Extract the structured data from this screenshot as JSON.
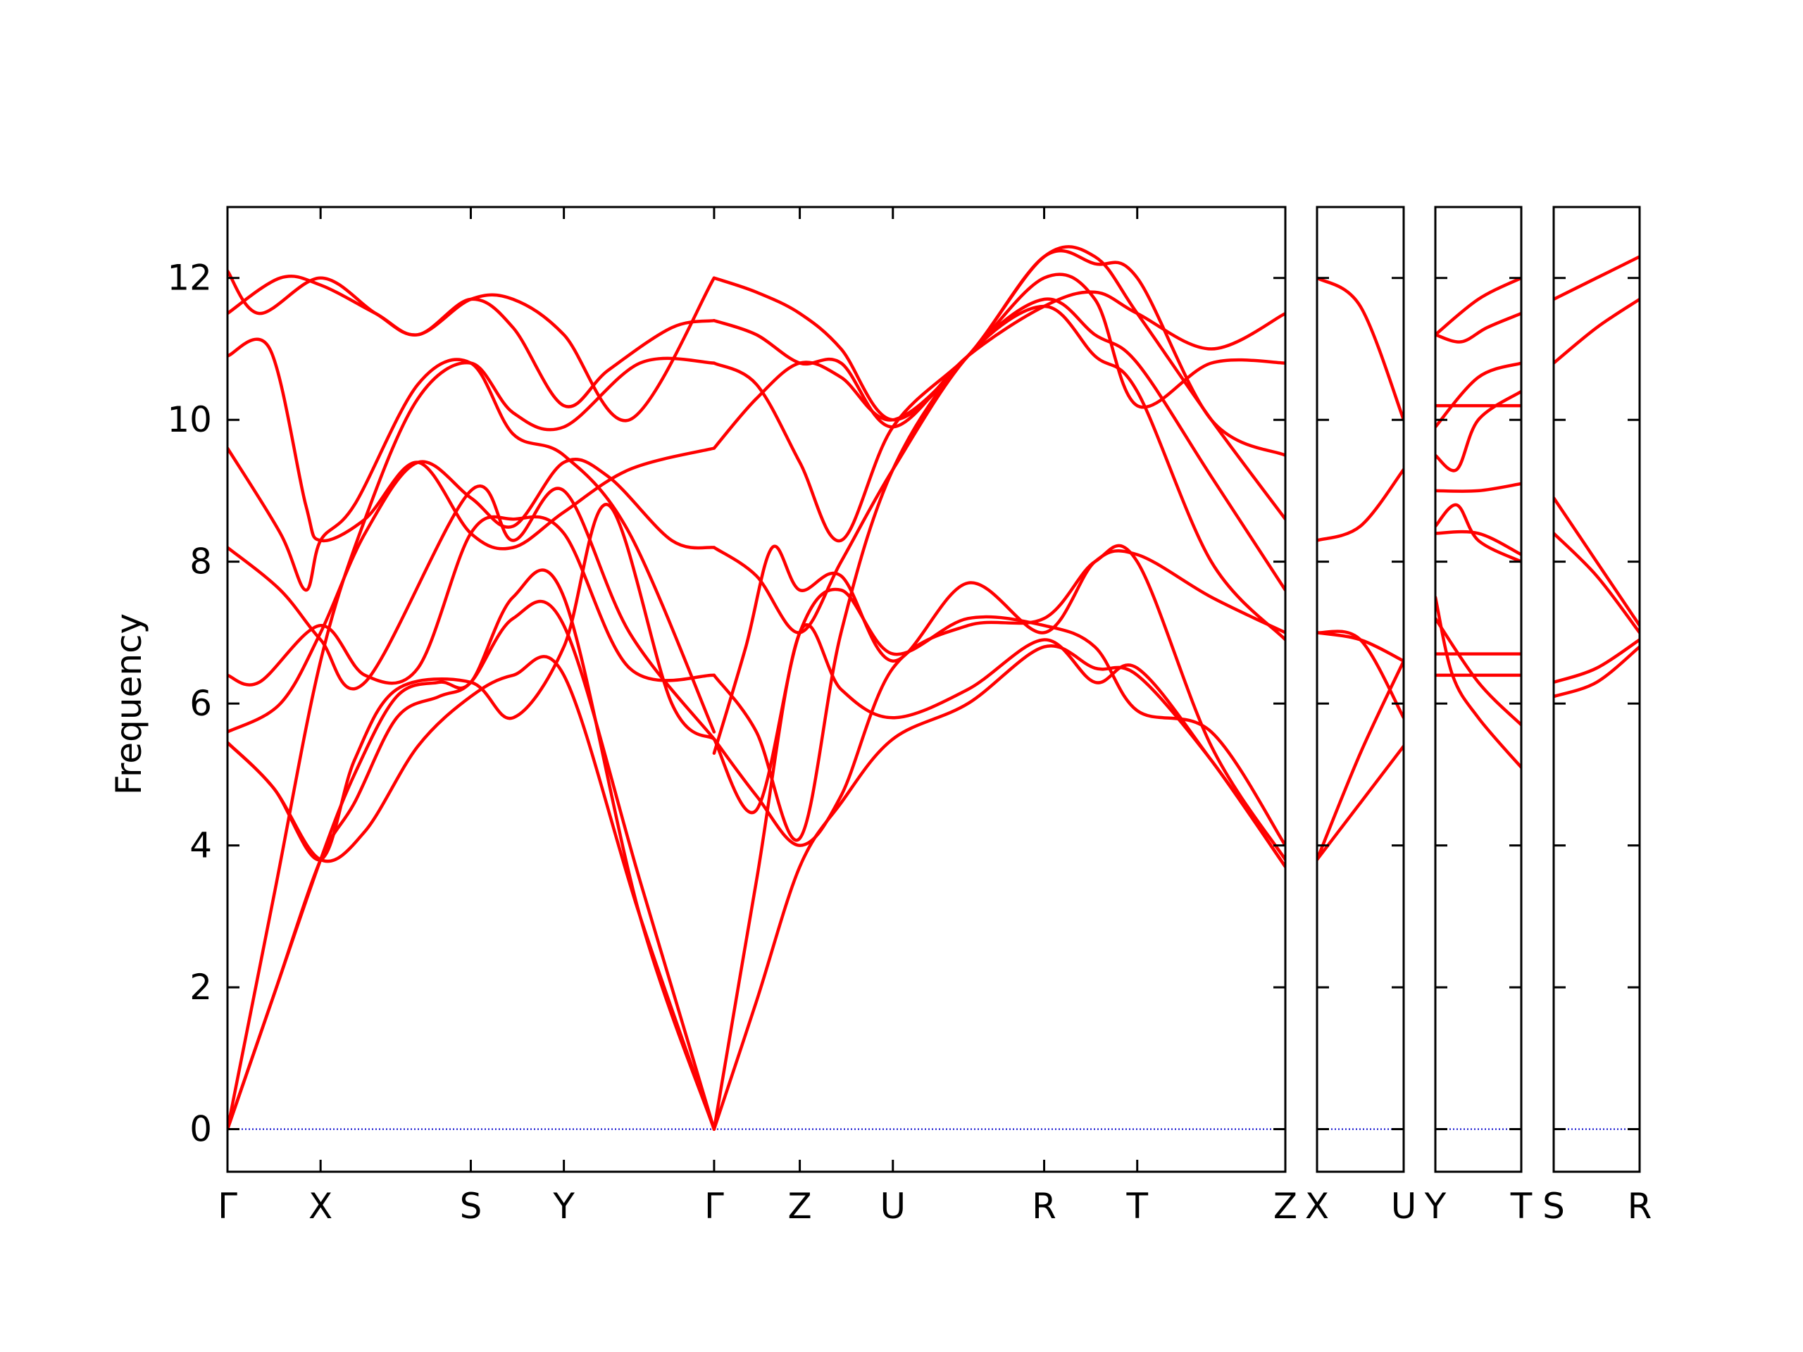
{
  "chart_data": {
    "type": "line",
    "title": "",
    "xlabel": "",
    "ylabel": "Frequency",
    "ylim": [
      -0.6,
      13
    ],
    "yticks": [
      0,
      2,
      4,
      6,
      8,
      10,
      12
    ],
    "line_color": "#ff0000",
    "zero_line_color": "#0000cc",
    "grid": false,
    "legend": "none",
    "panels": [
      {
        "xlim": [
          0,
          1
        ],
        "ticks": [
          {
            "x": 0.0,
            "label": "Γ"
          },
          {
            "x": 0.088,
            "label": "X"
          },
          {
            "x": 0.23,
            "label": "S"
          },
          {
            "x": 0.318,
            "label": "Y"
          },
          {
            "x": 0.46,
            "label": "Γ"
          },
          {
            "x": 0.541,
            "label": "Z"
          },
          {
            "x": 0.629,
            "label": "U"
          },
          {
            "x": 0.772,
            "label": "R"
          },
          {
            "x": 0.86,
            "label": "T"
          },
          {
            "x": 1.0,
            "label": "Z"
          }
        ],
        "series": [
          {
            "x": [
              0,
              0.044,
              0.088,
              0.13,
              0.18,
              0.23,
              0.27,
              0.318,
              0.39,
              0.46
            ],
            "y": [
              0,
              3.3,
              6.6,
              8.6,
              10.3,
              10.8,
              10.1,
              9.9,
              10.8,
              10.8
            ]
          },
          {
            "x": [
              0,
              0.044,
              0.088,
              0.12,
              0.16,
              0.2,
              0.23,
              0.27,
              0.318,
              0.39,
              0.46
            ],
            "y": [
              0,
              1.9,
              3.8,
              4.6,
              5.8,
              6.1,
              6.3,
              7.2,
              7.1,
              3.5,
              0
            ]
          },
          {
            "x": [
              0,
              0.044,
              0.088,
              0.12,
              0.16,
              0.2,
              0.23,
              0.27,
              0.318,
              0.39,
              0.46
            ],
            "y": [
              0,
              1.9,
              3.8,
              5,
              6.1,
              6.3,
              6.3,
              7.5,
              7.5,
              3,
              0
            ]
          },
          {
            "x": [
              0,
              0.044,
              0.088,
              0.13,
              0.18,
              0.23,
              0.27,
              0.318,
              0.39,
              0.46
            ],
            "y": [
              5.45,
              4.8,
              3.8,
              4.2,
              5.4,
              6.1,
              6.4,
              6.4,
              3,
              0
            ]
          },
          {
            "x": [
              0,
              0.044,
              0.088,
              0.12,
              0.16,
              0.23,
              0.27,
              0.318,
              0.36,
              0.42,
              0.46
            ],
            "y": [
              5.45,
              4.8,
              3.8,
              5.2,
              6.2,
              6.3,
              5.8,
              6.8,
              8.8,
              6,
              5.5
            ]
          },
          {
            "x": [
              0,
              0.05,
              0.088,
              0.13,
              0.18,
              0.23,
              0.27,
              0.318,
              0.36,
              0.42,
              0.46
            ],
            "y": [
              5.6,
              6,
              7,
              8.4,
              9.4,
              8.9,
              8.5,
              9.4,
              9.2,
              8.3,
              8.2
            ]
          },
          {
            "x": [
              0,
              0.03,
              0.088,
              0.13,
              0.18,
              0.23,
              0.27,
              0.318,
              0.38,
              0.46
            ],
            "y": [
              6.4,
              6.3,
              7.1,
              6.4,
              6.5,
              8.4,
              8.6,
              8.4,
              6.5,
              6.4
            ]
          },
          {
            "x": [
              0,
              0.05,
              0.088,
              0.13,
              0.23,
              0.27,
              0.318,
              0.38,
              0.46
            ],
            "y": [
              8.2,
              7.6,
              6.9,
              6.3,
              9,
              8.3,
              9,
              7,
              5.5
            ]
          },
          {
            "x": [
              0,
              0.05,
              0.074,
              0.088,
              0.12,
              0.18,
              0.23,
              0.27,
              0.318,
              0.38,
              0.46
            ],
            "y": [
              9.6,
              8.4,
              7.6,
              8.3,
              8.8,
              10.5,
              10.8,
              9.8,
              9.5,
              8.4,
              5.6
            ]
          },
          {
            "x": [
              0,
              0.04,
              0.074,
              0.088,
              0.13,
              0.18,
              0.23,
              0.27,
              0.318,
              0.38,
              0.46
            ],
            "y": [
              10.9,
              11,
              8.8,
              8.3,
              8.6,
              9.4,
              8.4,
              8.2,
              8.7,
              9.3,
              9.6
            ]
          },
          {
            "x": [
              0,
              0.03,
              0.088,
              0.14,
              0.18,
              0.23,
              0.27,
              0.318,
              0.36,
              0.42,
              0.46
            ],
            "y": [
              12.1,
              11.5,
              12,
              11.5,
              11.2,
              11.7,
              11.3,
              10.2,
              10.7,
              11.3,
              11.4
            ]
          },
          {
            "x": [
              0,
              0.05,
              0.088,
              0.14,
              0.18,
              0.23,
              0.27,
              0.318,
              0.38,
              0.46
            ],
            "y": [
              11.5,
              12,
              11.9,
              11.5,
              11.2,
              11.7,
              11.7,
              11.2,
              10,
              12
            ]
          },
          {
            "x": [
              0.46,
              0.5,
              0.541,
              0.58,
              0.629,
              0.7,
              0.772,
              0.82,
              0.86,
              0.93,
              1
            ],
            "y": [
              0,
              1.8,
              3.7,
              4.6,
              5.5,
              6,
              6.8,
              6.5,
              6.4,
              5.2,
              3.7
            ]
          },
          {
            "x": [
              0.46,
              0.5,
              0.541,
              0.58,
              0.629,
              0.7,
              0.772,
              0.82,
              0.86,
              0.93,
              1
            ],
            "y": [
              0,
              3.5,
              7,
              6.2,
              5.8,
              6.2,
              6.9,
              6.3,
              6.5,
              5.2,
              3.7
            ]
          },
          {
            "x": [
              0.46,
              0.5,
              0.541,
              0.58,
              0.629,
              0.7,
              0.772,
              0.82,
              0.86,
              0.93,
              1
            ],
            "y": [
              5.5,
              4.7,
              4,
              4.7,
              6.5,
              7.1,
              7.2,
              8,
              8,
              5.4,
              3.8
            ]
          },
          {
            "x": [
              0.46,
              0.5,
              0.541,
              0.58,
              0.629,
              0.7,
              0.772,
              0.82,
              0.86,
              0.93,
              1
            ],
            "y": [
              5.5,
              4.5,
              7,
              7.6,
              6.7,
              7.2,
              7.1,
              6.8,
              5.9,
              5.6,
              4
            ]
          },
          {
            "x": [
              0.46,
              0.49,
              0.515,
              0.541,
              0.58,
              0.629,
              0.7,
              0.772,
              0.82,
              0.86,
              0.93,
              1
            ],
            "y": [
              5.3,
              6.8,
              8.2,
              7.6,
              7.8,
              6.6,
              7.7,
              7,
              8,
              8.1,
              7.5,
              7
            ]
          },
          {
            "x": [
              0.46,
              0.5,
              0.541,
              0.58,
              0.629,
              0.7,
              0.772,
              0.82,
              0.86,
              0.93,
              1
            ],
            "y": [
              6.4,
              5.6,
              4.1,
              7,
              9.3,
              10.9,
              11.6,
              10.9,
              10.4,
              8,
              6.9
            ]
          },
          {
            "x": [
              0.46,
              0.5,
              0.541,
              0.58,
              0.629,
              0.7,
              0.772,
              0.82,
              0.86,
              0.93,
              1
            ],
            "y": [
              8.2,
              7.8,
              7,
              8,
              9.3,
              10.9,
              11.7,
              11.2,
              10.8,
              9.2,
              7.6
            ]
          },
          {
            "x": [
              0.46,
              0.5,
              0.541,
              0.58,
              0.629,
              0.7,
              0.772,
              0.82,
              0.86,
              0.93,
              1
            ],
            "y": [
              9.6,
              10.3,
              10.8,
              10.6,
              10,
              10.9,
              12.3,
              12.3,
              11.5,
              10,
              8.6
            ]
          },
          {
            "x": [
              0.46,
              0.5,
              0.541,
              0.58,
              0.629,
              0.7,
              0.772,
              0.82,
              0.86,
              0.93,
              1
            ],
            "y": [
              10.8,
              10.5,
              9.4,
              8.3,
              9.9,
              10.9,
              12,
              11.7,
              10.2,
              10.8,
              10.8
            ]
          },
          {
            "x": [
              0.46,
              0.5,
              0.541,
              0.58,
              0.629,
              0.7,
              0.772,
              0.82,
              0.86,
              0.93,
              1
            ],
            "y": [
              12,
              11.8,
              11.5,
              11,
              10,
              10.9,
              12.3,
              12.2,
              12,
              10,
              9.5
            ]
          },
          {
            "x": [
              0.46,
              0.5,
              0.541,
              0.58,
              0.629,
              0.7,
              0.772,
              0.82,
              0.86,
              0.93,
              1
            ],
            "y": [
              11.4,
              11.2,
              10.8,
              10.8,
              9.9,
              10.9,
              11.6,
              11.8,
              11.5,
              11,
              11.5
            ]
          }
        ]
      },
      {
        "xlim": [
          0,
          1
        ],
        "ticks": [
          {
            "x": 0,
            "label": "X"
          },
          {
            "x": 1,
            "label": "U"
          }
        ],
        "series": [
          {
            "x": [
              0,
              0.5,
              1
            ],
            "y": [
              3.8,
              4.6,
              5.4
            ]
          },
          {
            "x": [
              0,
              0.5,
              1
            ],
            "y": [
              3.8,
              5.3,
              6.6
            ]
          },
          {
            "x": [
              0,
              0.5,
              1
            ],
            "y": [
              7,
              6.9,
              5.8
            ]
          },
          {
            "x": [
              0,
              0.5,
              1
            ],
            "y": [
              7,
              6.9,
              6.6
            ]
          },
          {
            "x": [
              0,
              0.5,
              1
            ],
            "y": [
              8.3,
              8.5,
              9.3
            ]
          },
          {
            "x": [
              0,
              0.5,
              1
            ],
            "y": [
              12,
              11.6,
              10
            ]
          }
        ]
      },
      {
        "xlim": [
          0,
          1
        ],
        "ticks": [
          {
            "x": 0,
            "label": "Y"
          },
          {
            "x": 1,
            "label": "T"
          }
        ],
        "series": [
          {
            "x": [
              0,
              0.5,
              1
            ],
            "y": [
              6.4,
              6.4,
              6.4
            ]
          },
          {
            "x": [
              0,
              0.5,
              1
            ],
            "y": [
              6.7,
              6.7,
              6.7
            ]
          },
          {
            "x": [
              0,
              0.2,
              0.5,
              1
            ],
            "y": [
              7.5,
              6.4,
              5.8,
              5.1
            ]
          },
          {
            "x": [
              0,
              0.5,
              1
            ],
            "y": [
              7.2,
              6.3,
              5.7
            ]
          },
          {
            "x": [
              0,
              0.5,
              1
            ],
            "y": [
              8.4,
              8.4,
              8.1
            ]
          },
          {
            "x": [
              0,
              0.25,
              0.5,
              1
            ],
            "y": [
              8.5,
              8.8,
              8.3,
              8
            ]
          },
          {
            "x": [
              0,
              0.5,
              1
            ],
            "y": [
              9,
              9,
              9.1
            ]
          },
          {
            "x": [
              0,
              0.25,
              0.5,
              1
            ],
            "y": [
              9.5,
              9.3,
              10,
              10.4
            ]
          },
          {
            "x": [
              0,
              0.5,
              1
            ],
            "y": [
              10.2,
              10.2,
              10.2
            ]
          },
          {
            "x": [
              0,
              0.5,
              1
            ],
            "y": [
              9.9,
              10.6,
              10.8
            ]
          },
          {
            "x": [
              0,
              0.3,
              0.6,
              1
            ],
            "y": [
              11.2,
              11.1,
              11.3,
              11.5
            ]
          },
          {
            "x": [
              0,
              0.5,
              1
            ],
            "y": [
              11.2,
              11.7,
              12
            ]
          }
        ]
      },
      {
        "xlim": [
          0,
          1
        ],
        "ticks": [
          {
            "x": 0,
            "label": "S"
          },
          {
            "x": 1,
            "label": "R"
          }
        ],
        "series": [
          {
            "x": [
              0,
              0.5,
              1
            ],
            "y": [
              6.1,
              6.3,
              6.8
            ]
          },
          {
            "x": [
              0,
              0.5,
              1
            ],
            "y": [
              6.3,
              6.5,
              6.9
            ]
          },
          {
            "x": [
              0,
              0.5,
              1
            ],
            "y": [
              8.4,
              7.8,
              7
            ]
          },
          {
            "x": [
              0,
              0.5,
              1
            ],
            "y": [
              8.9,
              8,
              7.1
            ]
          },
          {
            "x": [
              0,
              0.5,
              1
            ],
            "y": [
              10.8,
              11.3,
              11.7
            ]
          },
          {
            "x": [
              0,
              0.5,
              1
            ],
            "y": [
              11.7,
              12,
              12.3
            ]
          }
        ]
      }
    ]
  }
}
